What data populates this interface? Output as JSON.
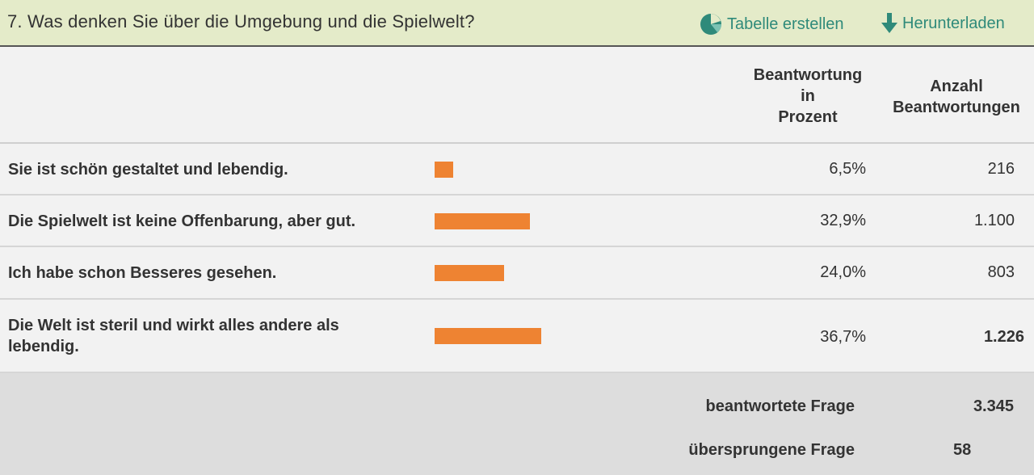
{
  "question": {
    "title": "7. Was denken Sie über die Umgebung und die Spielwelt?",
    "links": {
      "table": "Tabelle erstellen",
      "download": "Herunterladen"
    }
  },
  "columns": {
    "percent": [
      "Beantwortung",
      "in",
      "Prozent"
    ],
    "count": [
      "Anzahl",
      "Beantwortungen"
    ]
  },
  "rows": [
    {
      "label": [
        "Sie ist schön gestaltet und lebendig."
      ],
      "percent_text": "6,5%",
      "percent": 6.5,
      "count": "216"
    },
    {
      "label": [
        "Die Spielwelt ist keine Offenbarung, aber gut."
      ],
      "percent_text": "32,9%",
      "percent": 32.9,
      "count": "1.100"
    },
    {
      "label": [
        "Ich habe schon Besseres gesehen."
      ],
      "percent_text": "24,0%",
      "percent": 24.0,
      "count": "803"
    },
    {
      "label": [
        "Die Welt ist steril und wirkt alles andere als",
        "lebendig."
      ],
      "percent_text": "36,7%",
      "percent": 36.7,
      "count": "1.226"
    }
  ],
  "summary": {
    "answered_label": "beantwortete Frage",
    "answered_value": "3.345",
    "skipped_label": "übersprungene Frage",
    "skipped_value": "58"
  },
  "colors": {
    "bar": "#ee8332",
    "header_bg": "#e4ebc9",
    "link": "#2f8a7a"
  },
  "icons": {
    "table": "pie-chart-icon",
    "download": "download-arrow-icon"
  }
}
